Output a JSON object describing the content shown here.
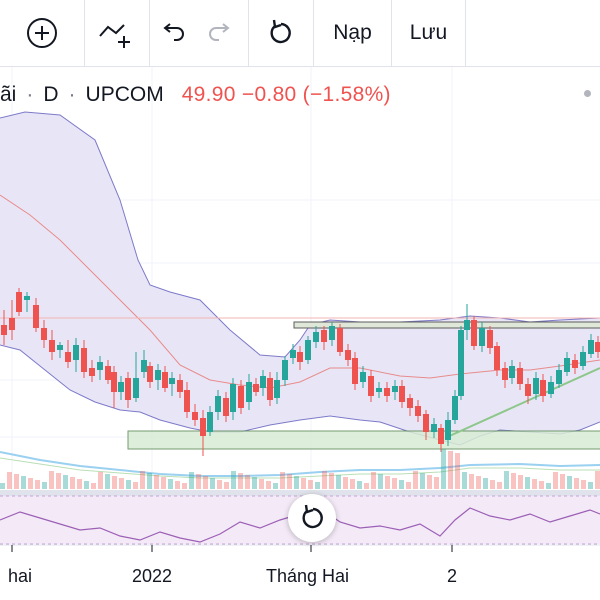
{
  "toolbar": {
    "buttons": [
      {
        "name": "add-icon"
      },
      {
        "name": "indicator-icon"
      },
      {
        "name": "undo-icon"
      },
      {
        "name": "redo-icon"
      },
      {
        "name": "reset-icon"
      }
    ],
    "load_label": "Nạp",
    "save_label": "Lưu"
  },
  "symbol": {
    "name_fragment": "ãi",
    "interval": "D",
    "exchange": "UPCOM",
    "price_line": "49.90 −0.80 (−1.58%)",
    "change_color": "#ef5350"
  },
  "xaxis": {
    "labels": [
      "hai",
      "2022",
      "Tháng Hai",
      "2"
    ]
  },
  "colors": {
    "up": "#26a69a",
    "down": "#ef5350",
    "band_fill": "#e8e6f6",
    "band_line": "#7d7ac9",
    "ma_line": "#e88b8b",
    "zone_fill": "#d8ecd5",
    "trend_line": "#8dc78b"
  }
}
